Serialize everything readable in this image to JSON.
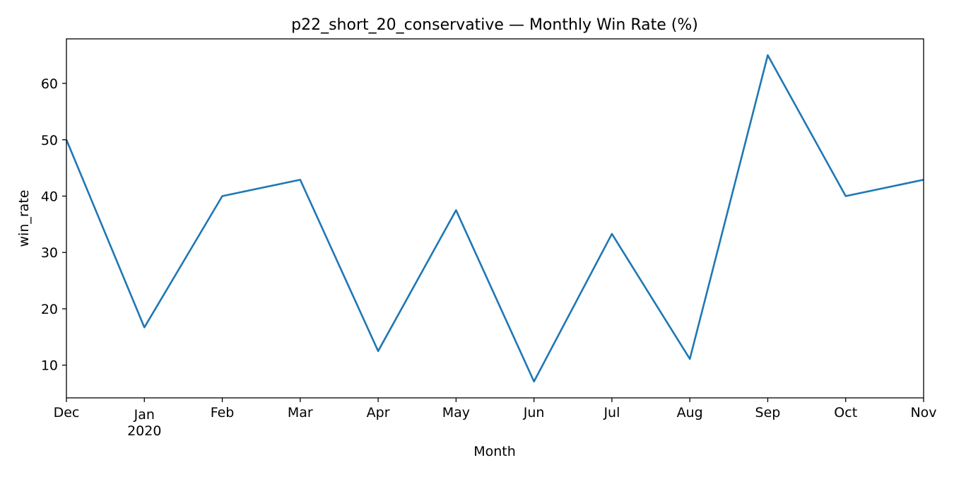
{
  "chart_data": {
    "type": "line",
    "title": "p22_short_20_conservative — Monthly Win Rate (%)",
    "xlabel": "Month",
    "ylabel": "win_rate",
    "categories": [
      "Dec",
      "Jan",
      "Feb",
      "Mar",
      "Apr",
      "May",
      "Jun",
      "Jul",
      "Aug",
      "Sep",
      "Oct",
      "Nov"
    ],
    "year_label": "2020",
    "series": [
      {
        "values": [
          50.0,
          16.7,
          40.0,
          42.9,
          12.5,
          37.5,
          7.1,
          33.3,
          11.1,
          65.0,
          40.0,
          42.9
        ]
      }
    ],
    "ylim": [
      4.2,
      67.9
    ],
    "yticks": [
      10,
      20,
      30,
      40,
      50,
      60
    ],
    "grid": false,
    "legend": "none",
    "line_color": "#1f77b4"
  }
}
